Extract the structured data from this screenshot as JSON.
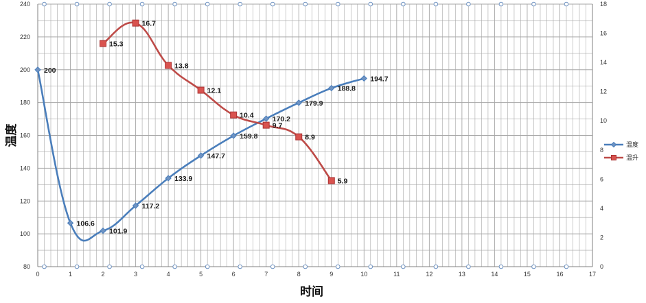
{
  "chart_data": {
    "type": "line",
    "title": "",
    "xlabel": "时间",
    "ylabel": "温度",
    "x_ticks": [
      "0",
      "1",
      "2",
      "3",
      "4",
      "5",
      "6",
      "7",
      "8",
      "9",
      "10",
      "11",
      "12",
      "13",
      "14",
      "15",
      "16",
      "17"
    ],
    "y_ticks": [
      "80",
      "100",
      "120",
      "140",
      "160",
      "180",
      "200",
      "220",
      "240"
    ],
    "y2_ticks": [
      "0",
      "2",
      "4",
      "6",
      "8",
      "10",
      "12",
      "14",
      "16",
      "18"
    ],
    "xlim": [
      0,
      17
    ],
    "ylim": [
      80,
      240
    ],
    "y2lim": [
      0,
      18
    ],
    "grid": true,
    "legend_position": "right",
    "series": [
      {
        "name": "温度",
        "axis": "left",
        "color": "#4a7ebb",
        "marker": "diamond",
        "smooth": true,
        "x": [
          0,
          1,
          2,
          3,
          4,
          5,
          6,
          7,
          8,
          9,
          10
        ],
        "values": [
          200,
          106.6,
          101.9,
          117.2,
          133.9,
          147.7,
          159.8,
          170.2,
          179.9,
          188.8,
          194.7
        ],
        "labels": [
          "200",
          "106.6",
          "101.9",
          "117.2",
          "133.9",
          "147.7",
          "159.8",
          "170.2",
          "179.9",
          "188.8",
          "194.7"
        ]
      },
      {
        "name": "温升",
        "axis": "right",
        "color": "#be4b48",
        "marker": "square",
        "smooth": true,
        "x": [
          2,
          3,
          4,
          5,
          6,
          7,
          8,
          9
        ],
        "values": [
          15.3,
          16.7,
          13.8,
          12.1,
          10.4,
          9.7,
          8.9,
          5.9
        ],
        "labels": [
          "15.3",
          "16.7",
          "13.8",
          "12.1",
          "10.4",
          "9.7",
          "8.9",
          "5.9"
        ]
      }
    ],
    "top_series_decoration_color": "#6f93c2",
    "grid_color": "#a6a6a6"
  }
}
